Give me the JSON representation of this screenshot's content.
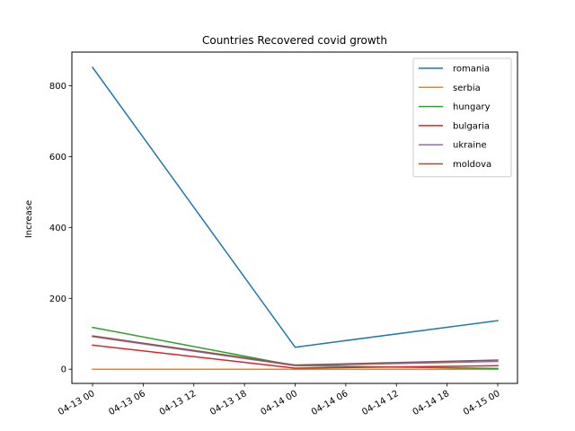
{
  "chart_data": {
    "type": "line",
    "title": "Countries Recovered covid growth",
    "xlabel": "",
    "ylabel": "Increase",
    "x": [
      "04-13 00",
      "04-14 00",
      "04-15 00"
    ],
    "x_tick_labels": [
      "04-13 00",
      "04-13 06",
      "04-13 12",
      "04-13 18",
      "04-14 00",
      "04-14 06",
      "04-14 12",
      "04-14 18",
      "04-15 00"
    ],
    "y_ticks": [
      0,
      200,
      400,
      600,
      800
    ],
    "ylim": [
      -40,
      895
    ],
    "grid": false,
    "legend_position": "top-right",
    "series": [
      {
        "name": "romania",
        "color": "#1f77b4",
        "values": [
          852,
          62,
          137
        ]
      },
      {
        "name": "serbia",
        "color": "#ff7f0e",
        "values": [
          0,
          0,
          0
        ]
      },
      {
        "name": "hungary",
        "color": "#2ca02c",
        "values": [
          118,
          10,
          2
        ]
      },
      {
        "name": "bulgaria",
        "color": "#d62728",
        "values": [
          68,
          3,
          10
        ]
      },
      {
        "name": "ukraine",
        "color": "#9467bd",
        "values": [
          92,
          10,
          22
        ]
      },
      {
        "name": "moldova",
        "color": "#8c564b",
        "values": [
          94,
          12,
          26
        ]
      }
    ]
  }
}
